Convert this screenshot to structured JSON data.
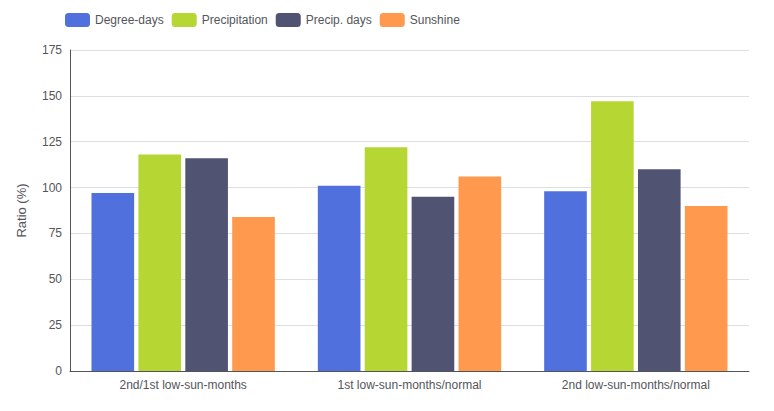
{
  "chart_data": {
    "type": "bar",
    "categories": [
      "2nd/1st low-sun-months",
      "1st low-sun-months/normal",
      "2nd low-sun-months/normal"
    ],
    "series": [
      {
        "name": "Degree-days",
        "values": [
          97,
          101,
          98
        ]
      },
      {
        "name": "Precipitation",
        "values": [
          118,
          122,
          147
        ]
      },
      {
        "name": "Precip. days",
        "values": [
          116,
          95,
          110
        ]
      },
      {
        "name": "Sunshine",
        "values": [
          84,
          106,
          90
        ]
      }
    ],
    "ylabel": "Ratio (%)",
    "ylim": [
      0,
      175
    ],
    "yticks": [
      0,
      25,
      50,
      75,
      100,
      125,
      150,
      175
    ],
    "grid": true,
    "legend": "upper left"
  }
}
